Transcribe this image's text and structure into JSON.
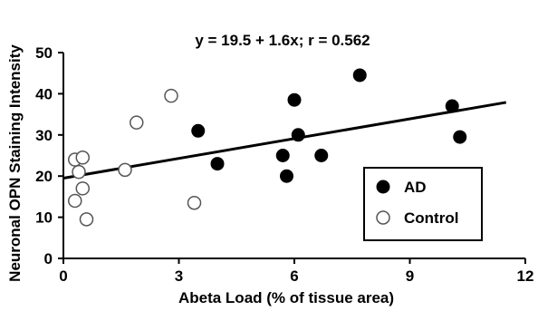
{
  "chart_data": {
    "type": "scatter",
    "title": "",
    "xlabel": "Abeta Load (% of tissue area)",
    "ylabel": "Neuronal OPN Staining Intensity",
    "xlim": [
      0,
      12
    ],
    "ylim": [
      0,
      50
    ],
    "xticks": [
      "0",
      "3",
      "6",
      "9",
      "12"
    ],
    "yticks": [
      "0",
      "10",
      "20",
      "30",
      "40",
      "50"
    ],
    "annotation": "y = 19.5 + 1.6x; r = 0.562",
    "regression": {
      "intercept": 19.5,
      "slope": 1.6,
      "x_range": [
        0,
        11.5
      ]
    },
    "legend": {
      "position": "bottom-right",
      "entries": [
        "AD",
        "Control"
      ]
    },
    "series": [
      {
        "name": "AD",
        "marker": "filled-circle",
        "points": [
          [
            3.5,
            31
          ],
          [
            4.0,
            23
          ],
          [
            5.7,
            25
          ],
          [
            5.8,
            20
          ],
          [
            6.0,
            38.5
          ],
          [
            6.1,
            30
          ],
          [
            6.7,
            25
          ],
          [
            7.7,
            44.5
          ],
          [
            10.1,
            37
          ],
          [
            10.3,
            29.5
          ]
        ]
      },
      {
        "name": "Control",
        "marker": "open-circle",
        "points": [
          [
            0.3,
            24
          ],
          [
            0.5,
            24.5
          ],
          [
            0.4,
            21
          ],
          [
            0.5,
            17
          ],
          [
            0.3,
            14
          ],
          [
            0.6,
            9.5
          ],
          [
            1.6,
            21.5
          ],
          [
            1.9,
            33
          ],
          [
            2.8,
            39.5
          ],
          [
            3.4,
            13.5
          ]
        ]
      }
    ]
  }
}
